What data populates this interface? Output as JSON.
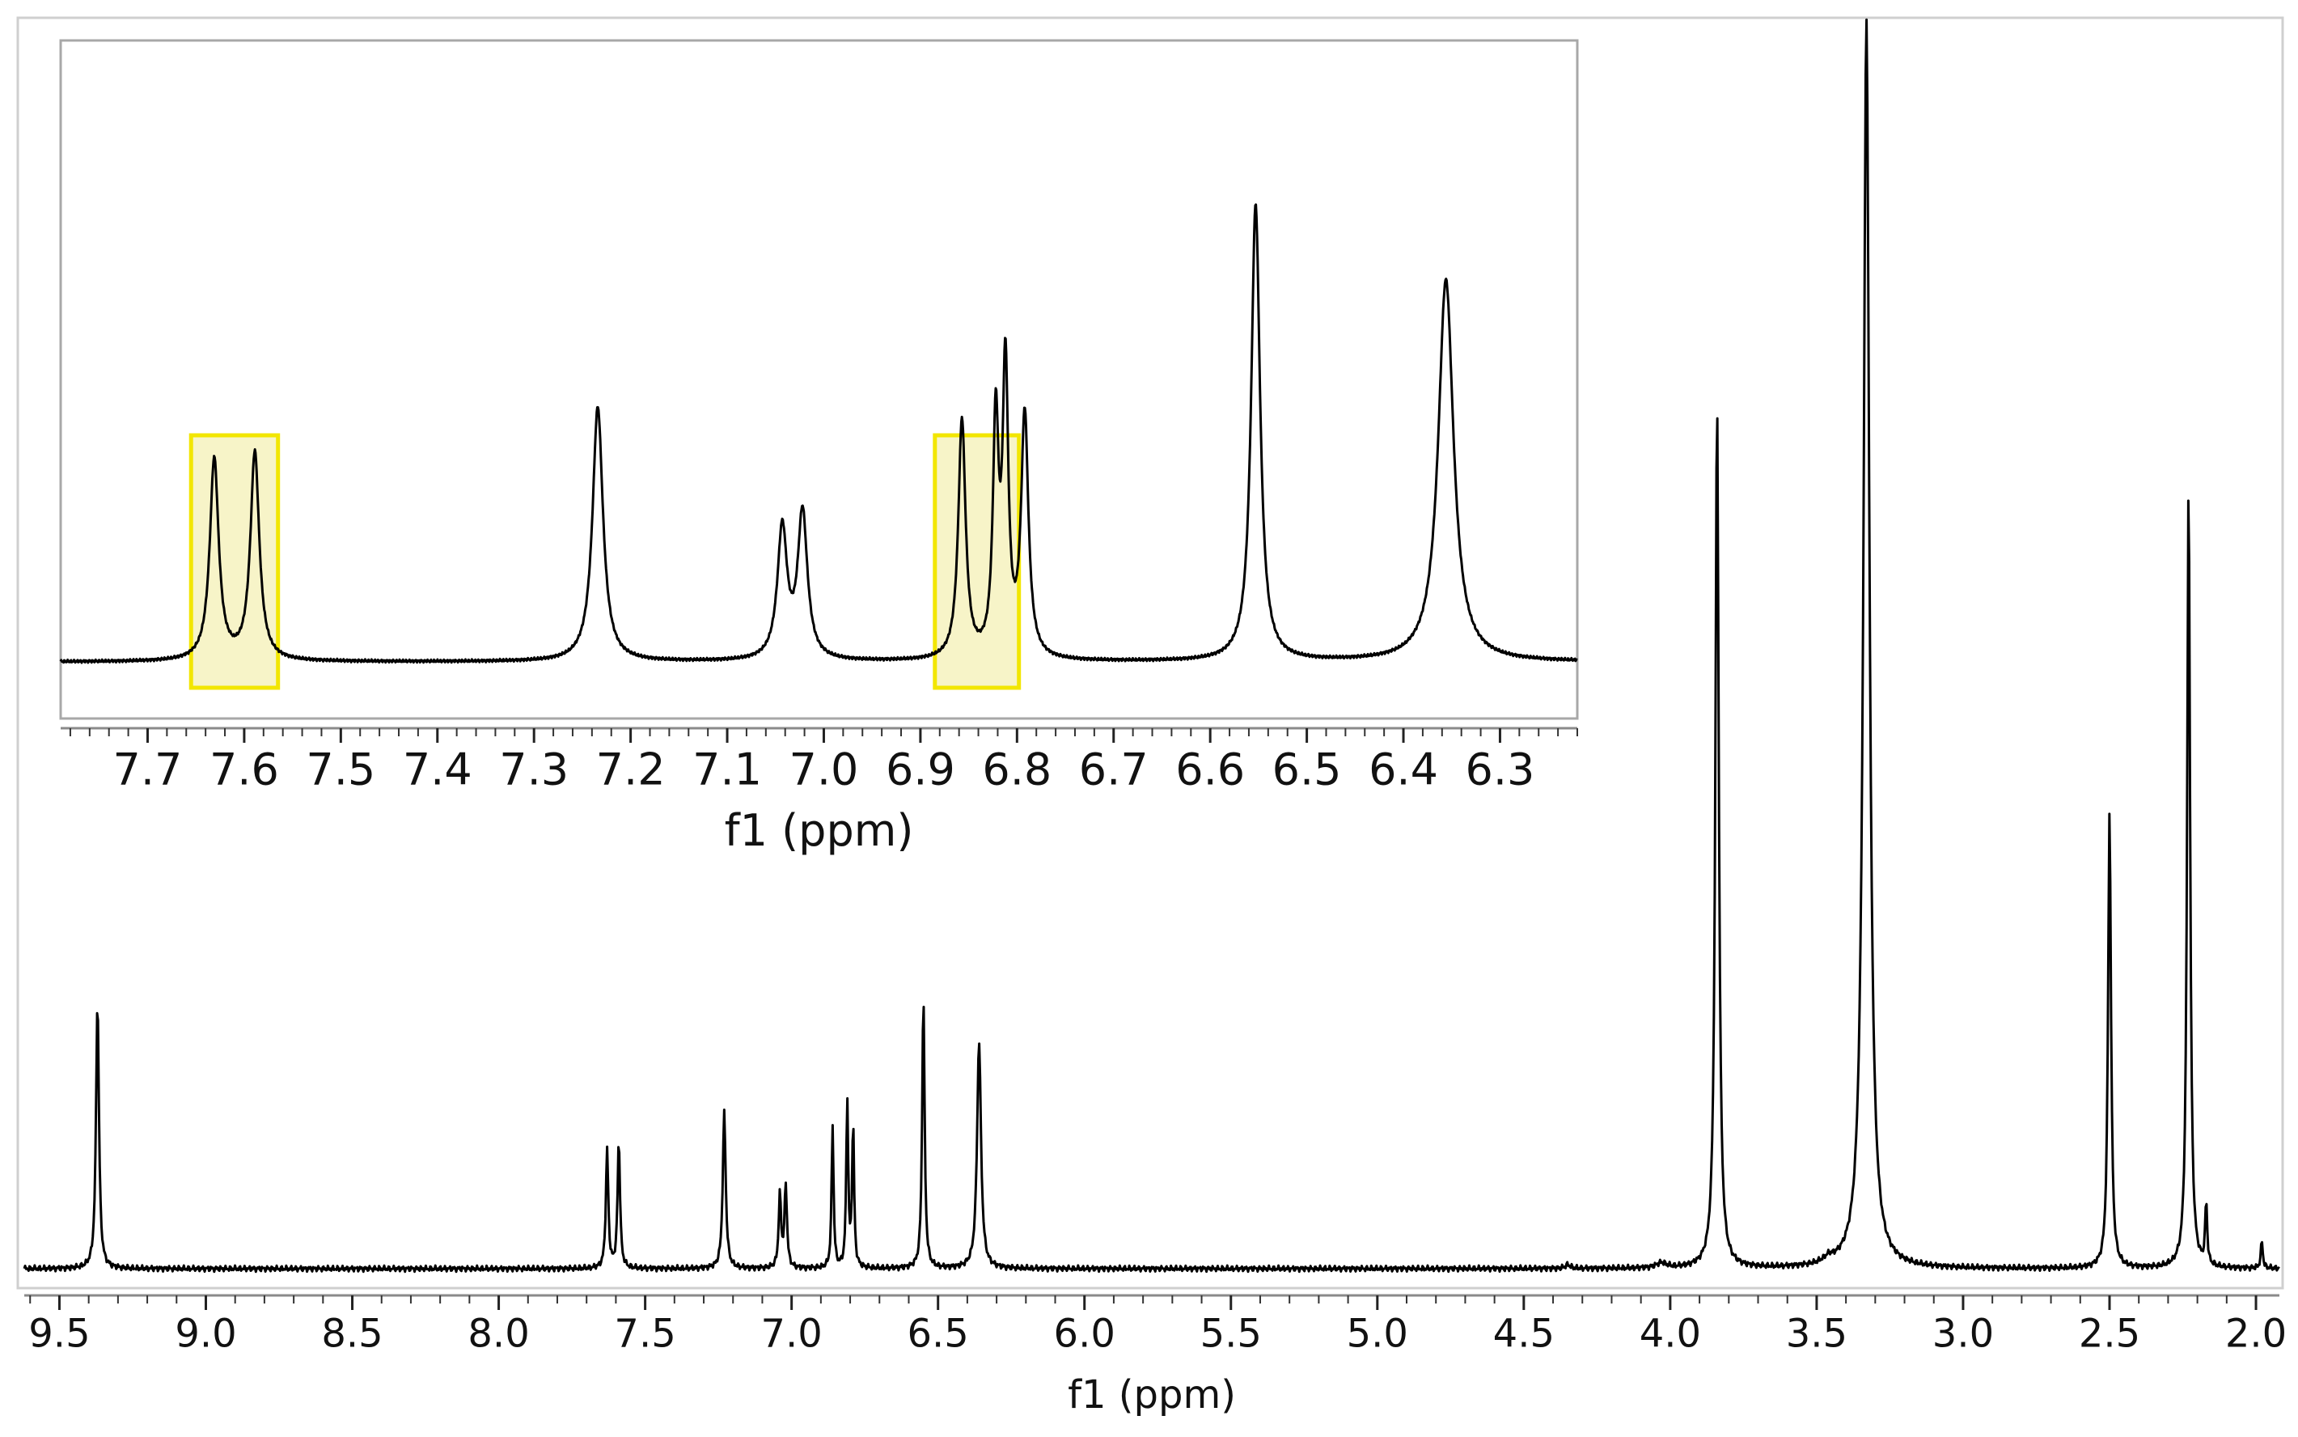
{
  "chart_data": [
    {
      "type": "line",
      "id": "main-spectrum",
      "xlabel": "f1 (ppm)",
      "xlim": [
        9.62,
        1.92
      ],
      "x_reversed": true,
      "ticks": [
        9.5,
        9.0,
        8.5,
        8.0,
        7.5,
        7.0,
        6.5,
        6.0,
        5.5,
        5.0,
        4.5,
        4.0,
        3.5,
        3.0,
        2.5,
        2.0
      ],
      "tick_labels": [
        "9.5",
        "9.0",
        "8.5",
        "8.0",
        "7.5",
        "7.0",
        "6.5",
        "6.0",
        "5.5",
        "5.0",
        "4.5",
        "4.0",
        "3.5",
        "3.0",
        "2.5",
        "2.0"
      ],
      "grid": false,
      "line_color": "#000000",
      "peaks": [
        {
          "ppm": 9.37,
          "height": 0.215,
          "width": 0.006
        },
        {
          "ppm": 7.63,
          "height": 0.095,
          "width": 0.005
        },
        {
          "ppm": 7.59,
          "height": 0.102,
          "width": 0.005
        },
        {
          "ppm": 7.23,
          "height": 0.125,
          "width": 0.006
        },
        {
          "ppm": 7.04,
          "height": 0.058,
          "width": 0.005
        },
        {
          "ppm": 7.02,
          "height": 0.066,
          "width": 0.005
        },
        {
          "ppm": 6.86,
          "height": 0.115,
          "width": 0.004
        },
        {
          "ppm": 6.81,
          "height": 0.135,
          "width": 0.004
        },
        {
          "ppm": 6.79,
          "height": 0.115,
          "width": 0.004
        },
        {
          "ppm": 6.55,
          "height": 0.218,
          "width": 0.005
        },
        {
          "ppm": 6.36,
          "height": 0.182,
          "width": 0.008
        },
        {
          "ppm": 4.35,
          "height": 0.003,
          "width": 0.01
        },
        {
          "ppm": 4.03,
          "height": 0.004,
          "width": 0.02
        },
        {
          "ppm": 3.84,
          "height": 0.692,
          "width": 0.007
        },
        {
          "ppm": 3.46,
          "height": 0.004,
          "width": 0.02
        },
        {
          "ppm": 3.33,
          "height": 1.0,
          "width": 0.012
        },
        {
          "ppm": 2.5,
          "height": 0.365,
          "width": 0.006
        },
        {
          "ppm": 2.23,
          "height": 0.63,
          "width": 0.006
        },
        {
          "ppm": 2.17,
          "height": 0.05,
          "width": 0.004
        },
        {
          "ppm": 1.98,
          "height": 0.022,
          "width": 0.004
        }
      ]
    },
    {
      "type": "line",
      "id": "inset-spectrum",
      "xlabel": "f1 (ppm)",
      "xlim": [
        7.79,
        6.22
      ],
      "x_reversed": true,
      "ticks": [
        7.7,
        7.6,
        7.5,
        7.4,
        7.3,
        7.2,
        7.1,
        7.0,
        6.9,
        6.8,
        6.7,
        6.6,
        6.5,
        6.4,
        6.3
      ],
      "tick_labels": [
        "7.7",
        "7.6",
        "7.5",
        "7.4",
        "7.3",
        "7.2",
        "7.1",
        "7.0",
        "6.9",
        "6.8",
        "6.7",
        "6.6",
        "6.5",
        "6.4",
        "6.3"
      ],
      "grid": false,
      "line_color": "#000000",
      "highlights": [
        {
          "from": 7.655,
          "to": 7.565
        },
        {
          "from": 6.885,
          "to": 6.798
        }
      ],
      "highlight_fill": "#f7f4c8",
      "highlight_stroke": "#f2e600",
      "peaks": [
        {
          "ppm": 7.631,
          "height": 0.325,
          "width": 0.0055
        },
        {
          "ppm": 7.589,
          "height": 0.335,
          "width": 0.0055
        },
        {
          "ppm": 7.234,
          "height": 0.41,
          "width": 0.0065
        },
        {
          "ppm": 7.043,
          "height": 0.21,
          "width": 0.006
        },
        {
          "ppm": 7.022,
          "height": 0.235,
          "width": 0.006
        },
        {
          "ppm": 6.857,
          "height": 0.385,
          "width": 0.0045
        },
        {
          "ppm": 6.822,
          "height": 0.375,
          "width": 0.0035
        },
        {
          "ppm": 6.812,
          "height": 0.46,
          "width": 0.0035
        },
        {
          "ppm": 6.792,
          "height": 0.39,
          "width": 0.0045
        },
        {
          "ppm": 6.553,
          "height": 0.735,
          "width": 0.0055
        },
        {
          "ppm": 6.356,
          "height": 0.615,
          "width": 0.0095
        }
      ]
    }
  ]
}
